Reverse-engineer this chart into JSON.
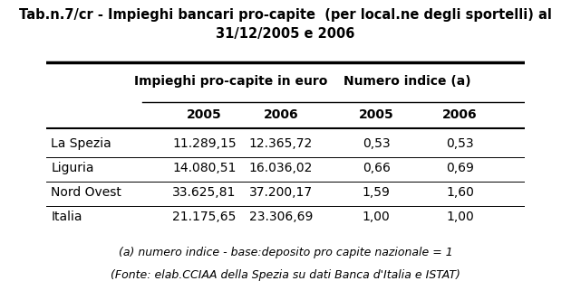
{
  "title_line1": "Tab.n.7/cr - Impieghi bancari pro-capite  (per local.ne degli sportelli) al",
  "title_line2": "31/12/2005 e 2006",
  "col_group1": "Impieghi pro-capite in euro",
  "col_group2": "Numero indice (a)",
  "subheaders": [
    "2005",
    "2006",
    "2005",
    "2006"
  ],
  "rows": [
    {
      "label": "La Spezia",
      "v1": "11.289,15",
      "v2": "12.365,72",
      "v3": "0,53",
      "v4": "0,53"
    },
    {
      "label": "Liguria",
      "v1": "14.080,51",
      "v2": "16.036,02",
      "v3": "0,66",
      "v4": "0,69"
    },
    {
      "label": "Nord Ovest",
      "v1": "33.625,81",
      "v2": "37.200,17",
      "v3": "1,59",
      "v4": "1,60"
    },
    {
      "label": "Italia",
      "v1": "21.175,65",
      "v2": "23.306,69",
      "v3": "1,00",
      "v4": "1,00"
    }
  ],
  "footnote1": "(a) numero indice - base:deposito pro capite nazionale = 1",
  "footnote2": "(Fonte: elab.CCIAA della Spezia su dati Banca d'Italia e ISTAT)",
  "bg_color": "#ffffff",
  "text_color": "#000000",
  "title_fontsize": 10.5,
  "header_fontsize": 10,
  "cell_fontsize": 10,
  "footnote_fontsize": 9
}
